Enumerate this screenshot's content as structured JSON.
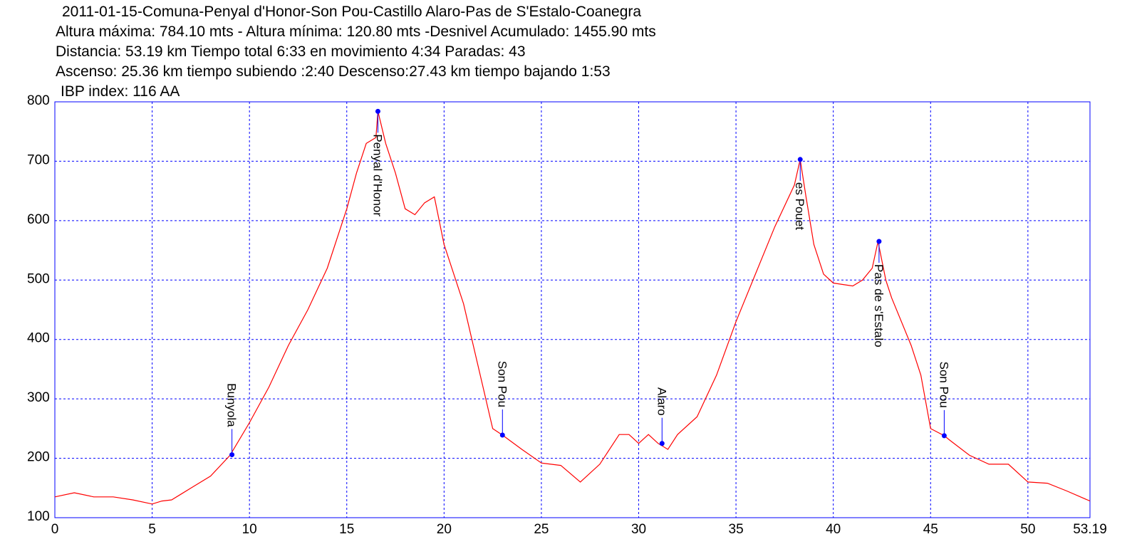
{
  "chart_data": {
    "type": "line",
    "title": "2011-01-15-Comuna-Penyal d'Honor-Son Pou-Castillo Alaro-Pas de S'Estalo-Coanegra",
    "subtitle_lines": [
      "Altura máxima: 784.10 mts - Altura mínima: 120.80 mts -Desnivel Acumulado: 1455.90 mts",
      "Distancia: 53.19 km  Tiempo total 6:33  en movimiento 4:34 Paradas: 43",
      "Ascenso: 25.36 km  tiempo subiendo :2:40  Descenso:27.43 km tiempo bajando 1:53",
      "IBP index: 116 AA"
    ],
    "color": "#ff0000",
    "x": [
      0,
      1,
      2,
      3,
      4,
      5,
      5.5,
      6,
      7,
      8,
      9,
      10,
      11,
      12,
      13,
      14,
      15,
      15.5,
      16,
      16.5,
      16.6,
      17,
      17.5,
      18,
      18.5,
      19,
      19.5,
      20,
      21,
      22,
      22.5,
      23,
      24,
      25,
      26,
      27,
      28,
      29,
      29.5,
      30,
      30.5,
      31,
      31.5,
      32,
      33,
      34,
      35,
      36,
      37,
      38,
      38.3,
      38.6,
      39,
      39.5,
      40,
      41,
      41.5,
      42,
      42.3,
      42.7,
      43,
      44,
      44.5,
      45,
      45.7,
      46,
      47,
      48,
      49,
      50,
      51,
      52,
      53.19
    ],
    "values": [
      135,
      142,
      135,
      135,
      130,
      123,
      128,
      130,
      150,
      170,
      205,
      260,
      320,
      390,
      450,
      520,
      620,
      680,
      730,
      740,
      784,
      730,
      680,
      620,
      610,
      630,
      640,
      560,
      460,
      320,
      250,
      239,
      215,
      192,
      188,
      160,
      190,
      240,
      240,
      225,
      240,
      225,
      215,
      240,
      270,
      340,
      430,
      510,
      590,
      660,
      703,
      640,
      560,
      510,
      495,
      490,
      500,
      520,
      565,
      500,
      470,
      390,
      340,
      250,
      238,
      230,
      205,
      190,
      190,
      160,
      158,
      145,
      128
    ],
    "markers": [
      {
        "name": "Bunyola",
        "x": 9.1,
        "y": 206,
        "placement": "above"
      },
      {
        "name": "Penyal d'Honor",
        "x": 16.6,
        "y": 784,
        "placement": "below"
      },
      {
        "name": "Son Pou",
        "x": 23.0,
        "y": 239,
        "placement": "above"
      },
      {
        "name": "Alaro",
        "x": 31.2,
        "y": 225,
        "placement": "above"
      },
      {
        "name": "es Pouet",
        "x": 38.3,
        "y": 703,
        "placement": "below"
      },
      {
        "name": "Pas de s'Estalo",
        "x": 42.35,
        "y": 565,
        "placement": "below"
      },
      {
        "name": "Son Pou",
        "x": 45.7,
        "y": 238,
        "placement": "above"
      }
    ],
    "marker_color": "#0000ff",
    "xlim": [
      0,
      53.19
    ],
    "ylim": [
      100,
      800
    ],
    "xticks": [
      0,
      5,
      10,
      15,
      20,
      25,
      30,
      35,
      40,
      45,
      50,
      53.19
    ],
    "yticks": [
      100,
      200,
      300,
      400,
      500,
      600,
      700,
      800
    ],
    "grid": true,
    "grid_color": "#0000ff"
  }
}
